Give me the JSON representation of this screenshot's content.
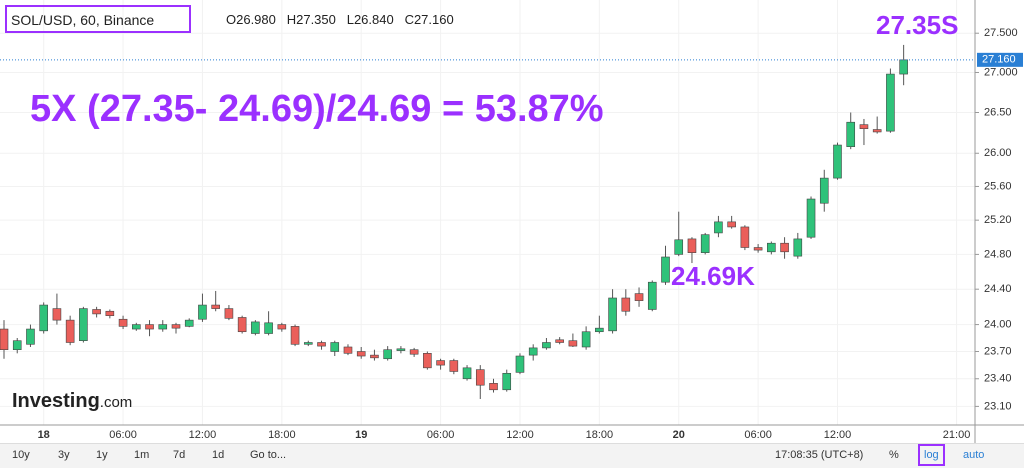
{
  "chart_data": {
    "type": "candlestick",
    "title": "SOL/USD, 60, Binance",
    "ohlc_header": [
      "O26.980",
      "H27.350",
      "L26.840",
      "C27.160"
    ],
    "annotations": [
      "5X (27.35- 24.69)/24.69 = 53.87%",
      "27.35S",
      "24.69K"
    ],
    "categories": [
      null,
      null,
      null,
      "18",
      null,
      null,
      null,
      null,
      null,
      "06:00",
      null,
      null,
      null,
      null,
      null,
      "12:00",
      null,
      null,
      null,
      null,
      null,
      "18:00",
      null,
      null,
      null,
      null,
      null,
      "19",
      null,
      null,
      null,
      null,
      null,
      "06:00",
      null,
      null,
      null,
      null,
      null,
      "12:00",
      null,
      null,
      null,
      null,
      null,
      "18:00",
      null,
      null,
      null,
      null,
      null,
      "20",
      null,
      null,
      null,
      null,
      null,
      "06:00",
      null,
      null,
      null,
      null,
      null,
      "12:00",
      null,
      null,
      null,
      null,
      null,
      null,
      null,
      null,
      "21:00"
    ],
    "open": [
      23.95,
      23.72,
      23.78,
      23.93,
      24.18,
      24.05,
      23.82,
      24.17,
      24.15,
      24.06,
      23.95,
      24.0,
      23.95,
      24.0,
      23.98,
      24.06,
      24.22,
      24.18,
      24.08,
      23.9,
      23.9,
      24.0,
      23.98,
      23.78,
      23.8,
      23.7,
      23.75,
      23.7,
      23.66,
      23.62,
      23.71,
      23.72,
      23.68,
      23.6,
      23.6,
      23.4,
      23.5,
      23.35,
      23.28,
      23.47,
      23.66,
      23.74,
      23.83,
      23.82,
      23.75,
      23.92,
      23.93,
      24.3,
      24.35,
      24.17,
      24.48,
      24.8,
      24.98,
      24.82,
      25.05,
      25.18,
      25.12,
      24.88,
      24.83,
      24.93,
      24.78,
      25.0,
      25.4,
      25.7,
      26.08,
      26.35,
      26.29,
      26.27,
      26.98,
      null,
      null,
      null,
      null
    ],
    "high": [
      24.05,
      23.85,
      24.0,
      24.25,
      24.35,
      24.1,
      24.2,
      24.2,
      24.17,
      24.1,
      24.02,
      24.05,
      24.05,
      24.02,
      24.07,
      24.35,
      24.38,
      24.22,
      24.1,
      24.05,
      24.15,
      24.02,
      24.0,
      23.82,
      23.82,
      23.82,
      23.78,
      23.75,
      23.72,
      23.76,
      23.76,
      23.74,
      23.7,
      23.62,
      23.62,
      23.55,
      23.55,
      23.4,
      23.5,
      23.68,
      23.78,
      23.85,
      23.86,
      23.9,
      23.98,
      24.1,
      24.4,
      24.4,
      24.42,
      24.5,
      24.9,
      25.3,
      25.0,
      25.05,
      25.25,
      25.25,
      25.14,
      24.92,
      24.95,
      25.0,
      25.05,
      25.48,
      25.8,
      26.13,
      26.5,
      26.42,
      26.45,
      27.05,
      27.35,
      null,
      null,
      null,
      null
    ],
    "low": [
      23.62,
      23.68,
      23.75,
      23.9,
      24.0,
      23.77,
      23.8,
      24.08,
      24.07,
      23.95,
      23.93,
      23.87,
      23.92,
      23.9,
      23.97,
      24.03,
      24.15,
      24.05,
      23.9,
      23.88,
      23.88,
      23.92,
      23.76,
      23.76,
      23.72,
      23.65,
      23.66,
      23.62,
      23.6,
      23.6,
      23.68,
      23.64,
      23.5,
      23.5,
      23.45,
      23.38,
      23.18,
      23.25,
      23.26,
      23.45,
      23.6,
      23.72,
      23.78,
      23.75,
      23.72,
      23.9,
      23.9,
      24.1,
      24.2,
      24.15,
      24.45,
      24.78,
      24.7,
      24.8,
      25.0,
      25.1,
      24.85,
      24.82,
      24.8,
      24.75,
      24.75,
      24.98,
      25.3,
      25.68,
      26.05,
      26.1,
      26.24,
      26.25,
      26.84,
      null,
      null,
      null,
      null
    ],
    "close": [
      23.72,
      23.82,
      23.95,
      24.22,
      24.05,
      23.8,
      24.18,
      24.12,
      24.1,
      23.98,
      24.0,
      23.95,
      24.0,
      23.96,
      24.05,
      24.22,
      24.18,
      24.07,
      23.92,
      24.03,
      24.02,
      23.95,
      23.78,
      23.8,
      23.76,
      23.8,
      23.68,
      23.65,
      23.63,
      23.72,
      23.73,
      23.67,
      23.52,
      23.55,
      23.48,
      23.52,
      23.33,
      23.28,
      23.46,
      23.65,
      23.74,
      23.8,
      23.8,
      23.76,
      23.92,
      23.96,
      24.3,
      24.15,
      24.27,
      24.48,
      24.77,
      24.97,
      24.82,
      25.03,
      25.18,
      25.12,
      24.88,
      24.85,
      24.93,
      24.83,
      24.98,
      25.45,
      25.7,
      26.1,
      26.38,
      26.3,
      26.26,
      26.98,
      27.16,
      null,
      null,
      null,
      null
    ],
    "up_color": "#2fc27a",
    "down_color": "#ea5f5a",
    "log_scale": true,
    "grid": true,
    "ylim": [
      22.9,
      27.93
    ],
    "yticks": [
      {
        "value": 23.1,
        "label": "23.10"
      },
      {
        "value": 23.4,
        "label": "23.40"
      },
      {
        "value": 23.7,
        "label": "23.70"
      },
      {
        "value": 24,
        "label": "24.00"
      },
      {
        "value": 24.4,
        "label": "24.40"
      },
      {
        "value": 24.8,
        "label": "24.80"
      },
      {
        "value": 25.2,
        "label": "25.20"
      },
      {
        "value": 25.6,
        "label": "25.60"
      },
      {
        "value": 26,
        "label": "26.00"
      },
      {
        "value": 26.5,
        "label": "26.50"
      },
      {
        "value": 27,
        "label": "27.000"
      },
      {
        "value": 27.5,
        "label": "27.500"
      }
    ],
    "last_price": {
      "value": 27.16,
      "label": "27.160"
    }
  },
  "logo": {
    "name": "Investing",
    "suffix": ".com"
  },
  "toolbar": {
    "ranges": [
      "10y",
      "3y",
      "1y",
      "1m",
      "7d",
      "1d",
      "Go to..."
    ],
    "time": "17:08:35 (UTC+8)",
    "options": [
      "%",
      "log",
      "auto"
    ]
  }
}
